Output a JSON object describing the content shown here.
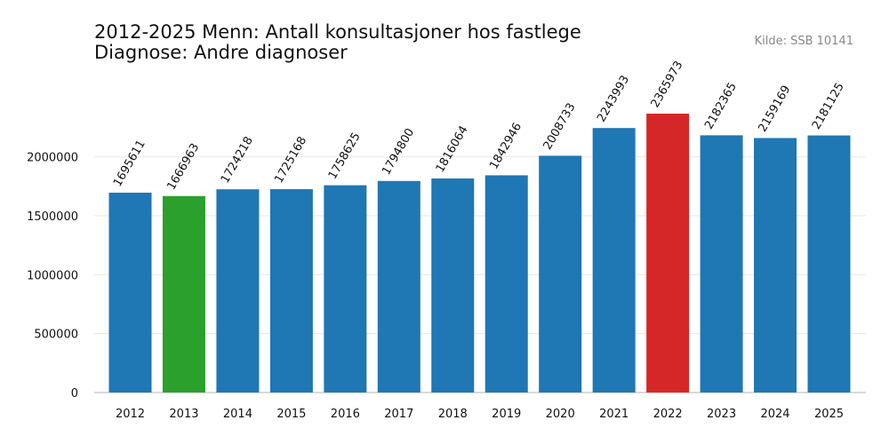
{
  "chart_data": {
    "type": "bar",
    "title": "2012-2025 Menn: Antall konsultasjoner hos fastlege",
    "subtitle": "Diagnose: Andre diagnoser",
    "source": "Kilde: SSB 10141",
    "xlabel": "",
    "ylabel": "",
    "categories": [
      "2012",
      "2013",
      "2014",
      "2015",
      "2016",
      "2017",
      "2018",
      "2019",
      "2020",
      "2021",
      "2022",
      "2023",
      "2024",
      "2025"
    ],
    "values": [
      1695611,
      1666963,
      1724218,
      1725168,
      1758625,
      1794800,
      1816064,
      1842946,
      2008733,
      2243993,
      2365973,
      2182365,
      2159169,
      2181125
    ],
    "data_labels": [
      "1695611",
      "1666963",
      "1724218",
      "1725168",
      "1758625",
      "1794800",
      "1816064",
      "1842946",
      "2008733",
      "2243993",
      "2365973",
      "2182365",
      "2159169",
      "2181125"
    ],
    "y_ticks": [
      0,
      500000,
      1000000,
      1500000,
      2000000
    ],
    "y_tick_labels": [
      "0",
      "500000",
      "1000000",
      "1500000",
      "2000000"
    ],
    "ylim": [
      0,
      2365973
    ],
    "grid": true,
    "colors": {
      "default": "#1f77b4",
      "min": "#2ca02c",
      "max": "#d62728"
    },
    "bar_colors": [
      "default",
      "min",
      "default",
      "default",
      "default",
      "default",
      "default",
      "default",
      "default",
      "default",
      "max",
      "default",
      "default",
      "default"
    ]
  }
}
